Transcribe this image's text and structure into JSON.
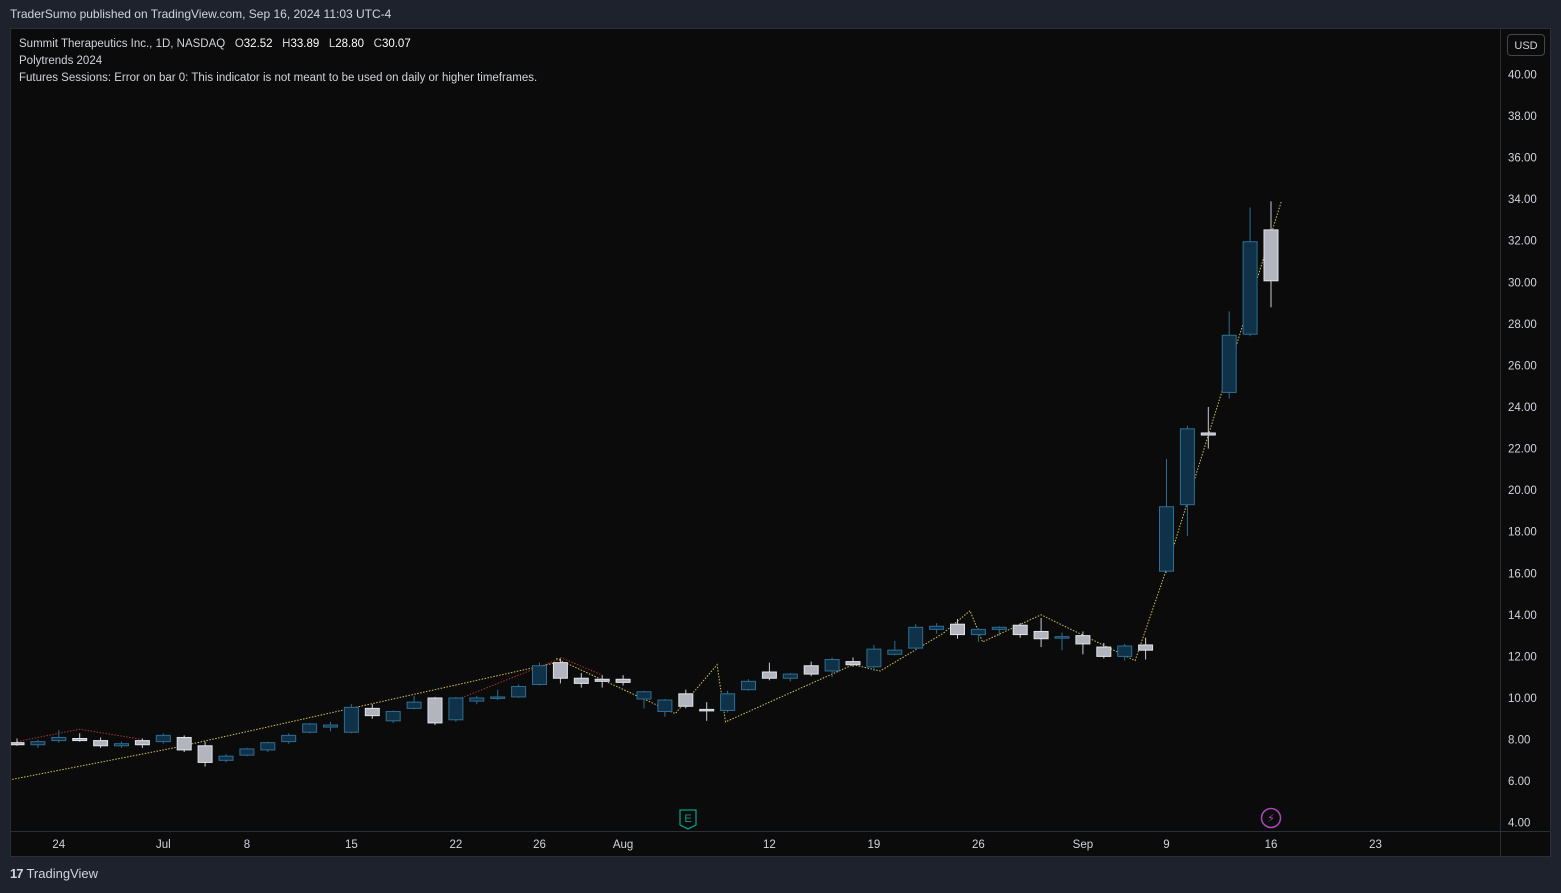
{
  "header": {
    "published": "TraderSumo published on TradingView.com, Sep 16, 2024 11:03 UTC-4"
  },
  "legend": {
    "symbol": "Summit Therapeutics Inc., 1D, NASDAQ",
    "o_label": "O",
    "o": "32.52",
    "h_label": "H",
    "h": "33.89",
    "l_label": "L",
    "l": "28.80",
    "c_label": "C",
    "c": "30.07",
    "indicator1": "Polytrends 2024",
    "indicator2": "Futures Sessions: Error on bar 0: This indicator is not meant to be used on daily or higher timeframes."
  },
  "currency_button": "USD",
  "footer": {
    "logo_mark": "17",
    "brand": "TradingView"
  },
  "markers": {
    "earnings": "E",
    "dividend": "⚡"
  },
  "colors": {
    "up": "#0f3249",
    "up_border": "#2d6e93",
    "down": "#b2b5be",
    "down_border": "#e0e3eb",
    "wick": "#c8cbd3",
    "trend": "#d4c254",
    "trend_red": "#a83234",
    "axis_text": "#d1d4dc",
    "earn": "#089981",
    "div": "#ab47bc"
  },
  "chart_data": {
    "type": "candlestick",
    "title": "Summit Therapeutics Inc., 1D, NASDAQ",
    "ylim": [
      3.6,
      41.8
    ],
    "y_ticks": [
      4,
      6,
      8,
      10,
      12,
      14,
      16,
      18,
      20,
      22,
      24,
      26,
      28,
      30,
      32,
      34,
      36,
      38,
      40
    ],
    "y_tick_labels": [
      "4.00",
      "6.00",
      "8.00",
      "10.00",
      "12.00",
      "14.00",
      "16.00",
      "18.00",
      "20.00",
      "22.00",
      "24.00",
      "26.00",
      "28.00",
      "30.00",
      "32.00",
      "34.00",
      "36.00",
      "38.00",
      "40.00"
    ],
    "x_tick_labels": [
      {
        "label": "24",
        "i": 2
      },
      {
        "label": "Jul",
        "i": 7
      },
      {
        "label": "8",
        "i": 11
      },
      {
        "label": "15",
        "i": 16
      },
      {
        "label": "22",
        "i": 21
      },
      {
        "label": "26",
        "i": 25
      },
      {
        "label": "Aug",
        "i": 29
      },
      {
        "label": "12",
        "i": 36
      },
      {
        "label": "19",
        "i": 41
      },
      {
        "label": "26",
        "i": 46
      },
      {
        "label": "Sep",
        "i": 51
      },
      {
        "label": "9",
        "i": 55
      },
      {
        "label": "16",
        "i": 60
      },
      {
        "label": "23",
        "i": 65
      }
    ],
    "bars": [
      {
        "o": 7.85,
        "h": 8.05,
        "l": 7.7,
        "c": 7.75
      },
      {
        "o": 7.75,
        "h": 8.0,
        "l": 7.6,
        "c": 7.9
      },
      {
        "o": 7.95,
        "h": 8.45,
        "l": 7.85,
        "c": 8.1
      },
      {
        "o": 8.05,
        "h": 8.3,
        "l": 7.9,
        "c": 7.95
      },
      {
        "o": 7.95,
        "h": 8.1,
        "l": 7.6,
        "c": 7.7
      },
      {
        "o": 7.7,
        "h": 7.9,
        "l": 7.6,
        "c": 7.8
      },
      {
        "o": 7.95,
        "h": 8.05,
        "l": 7.6,
        "c": 7.75
      },
      {
        "o": 7.9,
        "h": 8.3,
        "l": 7.8,
        "c": 8.2
      },
      {
        "o": 8.1,
        "h": 8.2,
        "l": 7.4,
        "c": 7.5
      },
      {
        "o": 7.7,
        "h": 7.9,
        "l": 6.7,
        "c": 6.9
      },
      {
        "o": 7.0,
        "h": 7.3,
        "l": 6.9,
        "c": 7.2
      },
      {
        "o": 7.25,
        "h": 7.6,
        "l": 7.2,
        "c": 7.55
      },
      {
        "o": 7.5,
        "h": 7.9,
        "l": 7.4,
        "c": 7.85
      },
      {
        "o": 7.9,
        "h": 8.3,
        "l": 7.8,
        "c": 8.2
      },
      {
        "o": 8.35,
        "h": 8.8,
        "l": 8.3,
        "c": 8.75
      },
      {
        "o": 8.6,
        "h": 8.85,
        "l": 8.4,
        "c": 8.7
      },
      {
        "o": 8.35,
        "h": 9.7,
        "l": 8.3,
        "c": 9.55
      },
      {
        "o": 9.5,
        "h": 9.7,
        "l": 9.0,
        "c": 9.15
      },
      {
        "o": 8.9,
        "h": 9.4,
        "l": 8.8,
        "c": 9.35
      },
      {
        "o": 9.5,
        "h": 10.1,
        "l": 9.45,
        "c": 9.8
      },
      {
        "o": 10.0,
        "h": 10.05,
        "l": 8.7,
        "c": 8.8
      },
      {
        "o": 8.95,
        "h": 10.05,
        "l": 8.85,
        "c": 10.0
      },
      {
        "o": 9.85,
        "h": 10.1,
        "l": 9.7,
        "c": 10.0
      },
      {
        "o": 10.0,
        "h": 10.4,
        "l": 9.9,
        "c": 10.05
      },
      {
        "o": 10.05,
        "h": 10.65,
        "l": 10.0,
        "c": 10.55
      },
      {
        "o": 10.65,
        "h": 11.7,
        "l": 10.6,
        "c": 11.55
      },
      {
        "o": 11.7,
        "h": 11.9,
        "l": 10.7,
        "c": 10.95
      },
      {
        "o": 10.95,
        "h": 11.2,
        "l": 10.5,
        "c": 10.7
      },
      {
        "o": 10.9,
        "h": 11.1,
        "l": 10.5,
        "c": 10.8
      },
      {
        "o": 10.9,
        "h": 11.1,
        "l": 10.6,
        "c": 10.75
      },
      {
        "o": 9.95,
        "h": 10.35,
        "l": 9.5,
        "c": 10.3
      },
      {
        "o": 9.35,
        "h": 9.95,
        "l": 9.1,
        "c": 9.9
      },
      {
        "o": 10.2,
        "h": 10.4,
        "l": 9.5,
        "c": 9.6
      },
      {
        "o": 9.45,
        "h": 9.8,
        "l": 8.9,
        "c": 9.4
      },
      {
        "o": 9.4,
        "h": 10.35,
        "l": 9.3,
        "c": 10.2
      },
      {
        "o": 10.4,
        "h": 10.9,
        "l": 10.35,
        "c": 10.8
      },
      {
        "o": 11.25,
        "h": 11.7,
        "l": 10.85,
        "c": 10.95
      },
      {
        "o": 10.95,
        "h": 11.2,
        "l": 10.8,
        "c": 11.15
      },
      {
        "o": 11.55,
        "h": 11.75,
        "l": 11.05,
        "c": 11.15
      },
      {
        "o": 11.3,
        "h": 11.95,
        "l": 11.0,
        "c": 11.85
      },
      {
        "o": 11.75,
        "h": 11.95,
        "l": 11.5,
        "c": 11.6
      },
      {
        "o": 11.5,
        "h": 12.55,
        "l": 11.3,
        "c": 12.35
      },
      {
        "o": 12.1,
        "h": 12.75,
        "l": 12.05,
        "c": 12.3
      },
      {
        "o": 12.4,
        "h": 13.55,
        "l": 12.3,
        "c": 13.4
      },
      {
        "o": 13.3,
        "h": 13.6,
        "l": 13.1,
        "c": 13.45
      },
      {
        "o": 13.55,
        "h": 13.8,
        "l": 12.85,
        "c": 13.05
      },
      {
        "o": 13.05,
        "h": 13.35,
        "l": 12.7,
        "c": 13.3
      },
      {
        "o": 13.3,
        "h": 13.45,
        "l": 13.0,
        "c": 13.4
      },
      {
        "o": 13.5,
        "h": 13.6,
        "l": 12.9,
        "c": 13.05
      },
      {
        "o": 13.2,
        "h": 13.85,
        "l": 12.45,
        "c": 12.85
      },
      {
        "o": 12.9,
        "h": 13.15,
        "l": 12.3,
        "c": 12.95
      },
      {
        "o": 13.0,
        "h": 13.2,
        "l": 12.1,
        "c": 12.6
      },
      {
        "o": 12.45,
        "h": 12.65,
        "l": 11.9,
        "c": 12.0
      },
      {
        "o": 12.0,
        "h": 12.6,
        "l": 11.8,
        "c": 12.5
      },
      {
        "o": 12.55,
        "h": 12.9,
        "l": 11.85,
        "c": 12.3
      },
      {
        "o": 16.1,
        "h": 21.5,
        "l": 16.0,
        "c": 19.2
      },
      {
        "o": 19.3,
        "h": 23.1,
        "l": 17.8,
        "c": 22.95
      },
      {
        "o": 22.75,
        "h": 24.0,
        "l": 22.0,
        "c": 22.65
      },
      {
        "o": 24.7,
        "h": 28.6,
        "l": 24.4,
        "c": 27.45
      },
      {
        "o": 27.5,
        "h": 33.6,
        "l": 27.4,
        "c": 31.95
      },
      {
        "o": 32.52,
        "h": 33.89,
        "l": 28.8,
        "c": 30.07
      }
    ],
    "trend_lines": [
      {
        "color": "yellow",
        "points": [
          [
            -2.2,
            5.7
          ],
          [
            7.5,
            7.6
          ],
          [
            25.8,
            11.7
          ]
        ]
      },
      {
        "color": "red",
        "points": [
          [
            0,
            7.9
          ],
          [
            3,
            8.5
          ],
          [
            6,
            8.0
          ]
        ]
      },
      {
        "color": "red",
        "points": [
          [
            21,
            9.9
          ],
          [
            26,
            11.9
          ]
        ]
      },
      {
        "color": "yellow",
        "points": [
          [
            25.8,
            11.9
          ],
          [
            31.5,
            9.25
          ],
          [
            33.5,
            11.6
          ],
          [
            33.9,
            8.85
          ],
          [
            40,
            11.6
          ],
          [
            41.3,
            11.3
          ],
          [
            44.3,
            13.1
          ],
          [
            45.6,
            14.2
          ],
          [
            46.2,
            12.7
          ],
          [
            49,
            14.0
          ],
          [
            53.5,
            11.8
          ],
          [
            55,
            16.2
          ],
          [
            60.5,
            33.9
          ]
        ]
      },
      {
        "color": "red",
        "points": [
          [
            26,
            11.95
          ],
          [
            28,
            11.1
          ]
        ]
      }
    ]
  }
}
